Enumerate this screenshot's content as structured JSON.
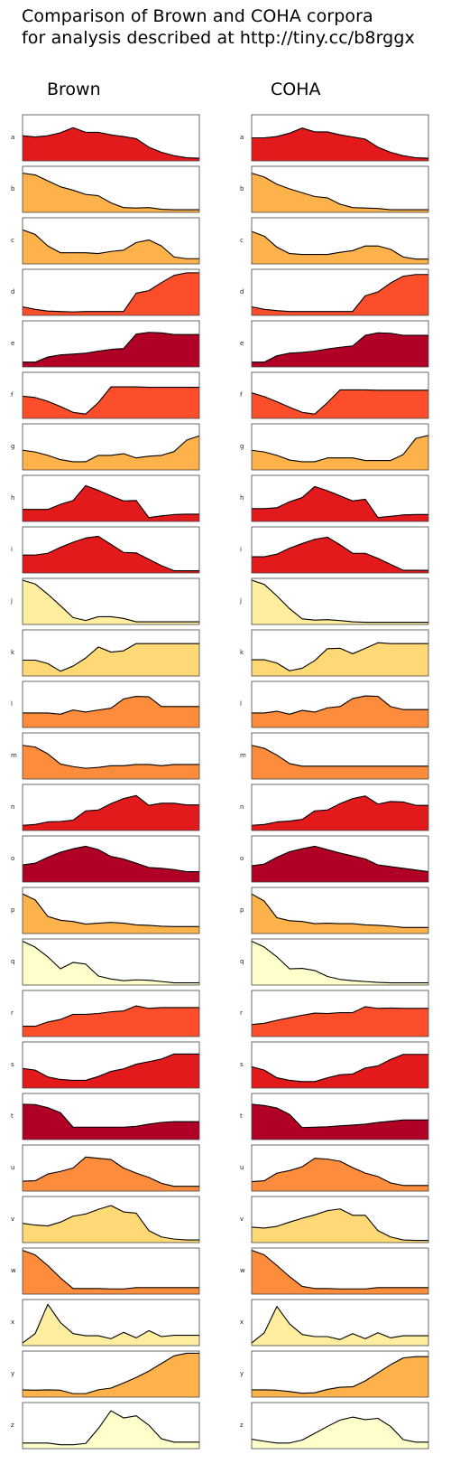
{
  "title_lines": [
    "Comparison of Brown and COHA corpora",
    "for analysis described at http://tiny.cc/b8rggx"
  ],
  "chart_data": {
    "type": "area",
    "title": "Comparison of Brown and COHA corpora for analysis described at http://tiny.cc/b8rggx",
    "panels": [
      "Brown",
      "COHA"
    ],
    "ylim": [
      0,
      1
    ],
    "grid": false,
    "legend": "none",
    "series": [
      {
        "name": "a",
        "color": "#e31a1c",
        "brown": [
          0.55,
          0.52,
          0.55,
          0.62,
          0.74,
          0.63,
          0.63,
          0.57,
          0.53,
          0.48,
          0.28,
          0.16,
          0.08,
          0.03,
          0.02
        ],
        "coha": [
          0.5,
          0.5,
          0.53,
          0.61,
          0.73,
          0.64,
          0.64,
          0.57,
          0.52,
          0.47,
          0.28,
          0.16,
          0.08,
          0.03,
          0.02
        ]
      },
      {
        "name": "b",
        "color": "#feb24c",
        "brown": [
          0.88,
          0.84,
          0.7,
          0.56,
          0.48,
          0.38,
          0.35,
          0.18,
          0.07,
          0.06,
          0.07,
          0.03,
          0.02,
          0.02,
          0.02
        ],
        "coha": [
          0.88,
          0.79,
          0.62,
          0.51,
          0.42,
          0.33,
          0.3,
          0.15,
          0.07,
          0.06,
          0.05,
          0.02,
          0.02,
          0.02,
          0.02
        ]
      },
      {
        "name": "c",
        "color": "#feb24c",
        "brown": [
          0.76,
          0.65,
          0.38,
          0.22,
          0.22,
          0.22,
          0.2,
          0.25,
          0.28,
          0.46,
          0.52,
          0.38,
          0.12,
          0.08,
          0.08
        ],
        "coha": [
          0.72,
          0.61,
          0.35,
          0.2,
          0.18,
          0.18,
          0.18,
          0.23,
          0.27,
          0.38,
          0.38,
          0.3,
          0.12,
          0.07,
          0.07
        ]
      },
      {
        "name": "d",
        "color": "#fc4e2a",
        "brown": [
          0.16,
          0.1,
          0.06,
          0.05,
          0.04,
          0.05,
          0.05,
          0.05,
          0.05,
          0.48,
          0.54,
          0.73,
          0.9,
          0.96,
          0.96
        ],
        "coha": [
          0.16,
          0.1,
          0.07,
          0.05,
          0.05,
          0.05,
          0.05,
          0.05,
          0.05,
          0.42,
          0.51,
          0.72,
          0.88,
          0.92,
          0.92
        ],
        "__s": [
          "d"
        ]
      },
      {
        "name": "e",
        "color": "#b10026",
        "brown": [
          0.07,
          0.07,
          0.19,
          0.24,
          0.26,
          0.28,
          0.33,
          0.37,
          0.39,
          0.73,
          0.77,
          0.76,
          0.72,
          0.72,
          0.72
        ],
        "coha": [
          0.07,
          0.07,
          0.22,
          0.28,
          0.3,
          0.33,
          0.38,
          0.42,
          0.45,
          0.7,
          0.76,
          0.75,
          0.7,
          0.7,
          0.7
        ]
      },
      {
        "name": "f",
        "color": "#fc4e2a",
        "brown": [
          0.48,
          0.45,
          0.36,
          0.24,
          0.1,
          0.06,
          0.33,
          0.7,
          0.7,
          0.7,
          0.69,
          0.69,
          0.69,
          0.69,
          0.69
        ],
        "coha": [
          0.56,
          0.47,
          0.35,
          0.22,
          0.1,
          0.06,
          0.33,
          0.63,
          0.63,
          0.63,
          0.62,
          0.62,
          0.62,
          0.62,
          0.62
        ]
      },
      {
        "name": "g",
        "color": "#feb24c",
        "brown": [
          0.42,
          0.38,
          0.3,
          0.2,
          0.15,
          0.15,
          0.3,
          0.3,
          0.34,
          0.24,
          0.28,
          0.3,
          0.39,
          0.66,
          0.76
        ],
        "coha": [
          0.42,
          0.38,
          0.3,
          0.19,
          0.15,
          0.15,
          0.24,
          0.24,
          0.24,
          0.18,
          0.18,
          0.18,
          0.32,
          0.7,
          0.77
        ]
      },
      {
        "name": "h",
        "color": "#e31a1c",
        "brown": [
          0.24,
          0.24,
          0.24,
          0.36,
          0.45,
          0.8,
          0.69,
          0.56,
          0.44,
          0.45,
          0.05,
          0.09,
          0.12,
          0.13,
          0.13
        ],
        "coha": [
          0.26,
          0.26,
          0.28,
          0.42,
          0.52,
          0.78,
          0.68,
          0.56,
          0.44,
          0.48,
          0.05,
          0.08,
          0.11,
          0.12,
          0.12
        ]
      },
      {
        "name": "i",
        "color": "#e31a1c",
        "brown": [
          0.38,
          0.38,
          0.42,
          0.56,
          0.68,
          0.78,
          0.82,
          0.63,
          0.44,
          0.43,
          0.28,
          0.13,
          0.01,
          0.01,
          0.01
        ],
        "coha": [
          0.34,
          0.34,
          0.4,
          0.54,
          0.65,
          0.75,
          0.8,
          0.62,
          0.42,
          0.42,
          0.3,
          0.16,
          0.02,
          0.02,
          0.02
        ]
      },
      {
        "name": "j",
        "color": "#ffeda0",
        "brown": [
          1.0,
          0.91,
          0.67,
          0.4,
          0.12,
          0.05,
          0.14,
          0.14,
          0.1,
          0.02,
          0.02,
          0.02,
          0.02,
          0.02,
          0.02
        ],
        "coha": [
          1.0,
          0.9,
          0.63,
          0.33,
          0.09,
          0.06,
          0.07,
          0.05,
          0.02,
          0.01,
          0.01,
          0.01,
          0.01,
          0.01,
          0.01
        ]
      },
      {
        "name": "k",
        "color": "#fed976",
        "brown": [
          0.33,
          0.33,
          0.25,
          0.07,
          0.19,
          0.38,
          0.64,
          0.52,
          0.55,
          0.72,
          0.72,
          0.72,
          0.72,
          0.72,
          0.72
        ],
        "coha": [
          0.34,
          0.34,
          0.26,
          0.08,
          0.14,
          0.32,
          0.6,
          0.61,
          0.48,
          0.61,
          0.74,
          0.72,
          0.72,
          0.72,
          0.72
        ]
      },
      {
        "name": "l",
        "color": "#fd8d3c",
        "brown": [
          0.3,
          0.3,
          0.3,
          0.27,
          0.37,
          0.32,
          0.37,
          0.41,
          0.63,
          0.69,
          0.68,
          0.45,
          0.45,
          0.45,
          0.45
        ],
        "coha": [
          0.3,
          0.3,
          0.34,
          0.27,
          0.36,
          0.32,
          0.42,
          0.45,
          0.64,
          0.7,
          0.69,
          0.45,
          0.38,
          0.38,
          0.38
        ],
        "__s": [
          "l"
        ]
      },
      {
        "name": "m",
        "color": "#fd8d3c",
        "brown": [
          0.75,
          0.71,
          0.55,
          0.31,
          0.25,
          0.21,
          0.23,
          0.27,
          0.27,
          0.3,
          0.3,
          0.27,
          0.3,
          0.3,
          0.3
        ],
        "coha": [
          0.75,
          0.68,
          0.52,
          0.32,
          0.26,
          0.26,
          0.26,
          0.26,
          0.26,
          0.26,
          0.26,
          0.26,
          0.26,
          0.26,
          0.26
        ]
      },
      {
        "name": "n",
        "color": "#e31a1c",
        "brown": [
          0.08,
          0.1,
          0.16,
          0.17,
          0.2,
          0.42,
          0.44,
          0.59,
          0.71,
          0.78,
          0.55,
          0.6,
          0.6,
          0.56,
          0.56
        ],
        "coha": [
          0.08,
          0.1,
          0.16,
          0.18,
          0.22,
          0.42,
          0.44,
          0.59,
          0.71,
          0.77,
          0.58,
          0.64,
          0.63,
          0.55,
          0.55
        ]
      },
      {
        "name": "o",
        "color": "#b10026",
        "brown": [
          0.36,
          0.4,
          0.54,
          0.66,
          0.74,
          0.8,
          0.72,
          0.56,
          0.5,
          0.4,
          0.3,
          0.28,
          0.25,
          0.2,
          0.2
        ],
        "coha": [
          0.34,
          0.38,
          0.54,
          0.67,
          0.74,
          0.8,
          0.72,
          0.64,
          0.57,
          0.5,
          0.36,
          0.32,
          0.28,
          0.24,
          0.2
        ]
      },
      {
        "name": "p",
        "color": "#feb24c",
        "brown": [
          0.89,
          0.75,
          0.36,
          0.27,
          0.24,
          0.18,
          0.2,
          0.22,
          0.2,
          0.16,
          0.15,
          0.13,
          0.12,
          0.12,
          0.12
        ],
        "coha": [
          0.89,
          0.72,
          0.33,
          0.26,
          0.24,
          0.19,
          0.2,
          0.19,
          0.19,
          0.16,
          0.15,
          0.13,
          0.1,
          0.1,
          0.1
        ]
      },
      {
        "name": "q",
        "color": "#ffffcc",
        "brown": [
          0.99,
          0.85,
          0.62,
          0.34,
          0.49,
          0.45,
          0.17,
          0.1,
          0.06,
          0.08,
          0.07,
          0.04,
          0.01,
          0.01,
          0.01
        ],
        "coha": [
          0.99,
          0.85,
          0.62,
          0.34,
          0.35,
          0.3,
          0.16,
          0.09,
          0.06,
          0.04,
          0.02,
          0.01,
          0.01,
          0.01,
          0.01
        ]
      },
      {
        "name": "r",
        "color": "#fc4e2a",
        "brown": [
          0.2,
          0.2,
          0.3,
          0.36,
          0.48,
          0.48,
          0.5,
          0.54,
          0.56,
          0.68,
          0.62,
          0.64,
          0.64,
          0.64,
          0.64
        ],
        "coha": [
          0.24,
          0.27,
          0.34,
          0.4,
          0.46,
          0.51,
          0.5,
          0.52,
          0.52,
          0.66,
          0.62,
          0.63,
          0.62,
          0.62,
          0.62
        ]
      },
      {
        "name": "s",
        "color": "#e31a1c",
        "brown": [
          0.42,
          0.38,
          0.22,
          0.16,
          0.14,
          0.14,
          0.23,
          0.35,
          0.41,
          0.52,
          0.58,
          0.64,
          0.76,
          0.76,
          0.76
        ],
        "coha": [
          0.46,
          0.38,
          0.2,
          0.14,
          0.11,
          0.11,
          0.2,
          0.27,
          0.29,
          0.43,
          0.48,
          0.63,
          0.75,
          0.75,
          0.75
        ]
      },
      {
        "name": "t",
        "color": "#b10026",
        "brown": [
          0.79,
          0.78,
          0.71,
          0.59,
          0.25,
          0.25,
          0.25,
          0.25,
          0.25,
          0.27,
          0.32,
          0.36,
          0.38,
          0.38,
          0.38
        ],
        "coha": [
          0.79,
          0.76,
          0.7,
          0.55,
          0.24,
          0.25,
          0.26,
          0.28,
          0.3,
          0.32,
          0.36,
          0.39,
          0.42,
          0.42,
          0.42
        ]
      },
      {
        "name": "u",
        "color": "#fd8d3c",
        "brown": [
          0.19,
          0.2,
          0.36,
          0.42,
          0.5,
          0.76,
          0.73,
          0.7,
          0.5,
          0.38,
          0.28,
          0.14,
          0.07,
          0.07,
          0.07
        ],
        "coha": [
          0.18,
          0.2,
          0.38,
          0.44,
          0.53,
          0.73,
          0.71,
          0.66,
          0.51,
          0.38,
          0.3,
          0.15,
          0.09,
          0.09,
          0.09
        ]
      },
      {
        "name": "v",
        "color": "#fed976",
        "brown": [
          0.41,
          0.37,
          0.35,
          0.44,
          0.58,
          0.63,
          0.74,
          0.83,
          0.68,
          0.65,
          0.24,
          0.09,
          0.04,
          0.02,
          0.02
        ],
        "coha": [
          0.32,
          0.3,
          0.34,
          0.44,
          0.53,
          0.61,
          0.71,
          0.75,
          0.6,
          0.6,
          0.24,
          0.09,
          0.02,
          0.01,
          0.01
        ]
      },
      {
        "name": "w",
        "color": "#fd8d3c",
        "brown": [
          0.99,
          0.88,
          0.63,
          0.34,
          0.09,
          0.09,
          0.09,
          0.08,
          0.08,
          0.11,
          0.11,
          0.11,
          0.11,
          0.11,
          0.11
        ],
        "coha": [
          0.99,
          0.88,
          0.63,
          0.37,
          0.14,
          0.09,
          0.09,
          0.08,
          0.08,
          0.08,
          0.11,
          0.11,
          0.11,
          0.11,
          0.11
        ]
      },
      {
        "name": "x",
        "color": "#ffeda0",
        "brown": [
          0.02,
          0.24,
          0.93,
          0.5,
          0.24,
          0.19,
          0.19,
          0.12,
          0.27,
          0.14,
          0.31,
          0.17,
          0.2,
          0.2,
          0.2
        ],
        "coha": [
          0.02,
          0.26,
          0.88,
          0.47,
          0.22,
          0.17,
          0.17,
          0.1,
          0.24,
          0.12,
          0.26,
          0.14,
          0.19,
          0.19,
          0.19
        ]
      },
      {
        "name": "y",
        "color": "#feb24c",
        "brown": [
          0.13,
          0.12,
          0.13,
          0.12,
          0.04,
          0.04,
          0.13,
          0.17,
          0.29,
          0.42,
          0.57,
          0.75,
          0.93,
          0.99,
          0.99
        ],
        "coha": [
          0.13,
          0.13,
          0.12,
          0.09,
          0.05,
          0.06,
          0.14,
          0.19,
          0.2,
          0.34,
          0.53,
          0.72,
          0.88,
          0.91,
          0.91
        ]
      },
      {
        "name": "z",
        "color": "#ffffcc",
        "brown": [
          0.09,
          0.09,
          0.09,
          0.05,
          0.05,
          0.08,
          0.43,
          0.85,
          0.68,
          0.73,
          0.51,
          0.19,
          0.11,
          0.11,
          0.11
        ],
        "coha": [
          0.18,
          0.13,
          0.09,
          0.09,
          0.16,
          0.32,
          0.48,
          0.63,
          0.7,
          0.64,
          0.67,
          0.48,
          0.17,
          0.11,
          0.11
        ]
      }
    ]
  }
}
